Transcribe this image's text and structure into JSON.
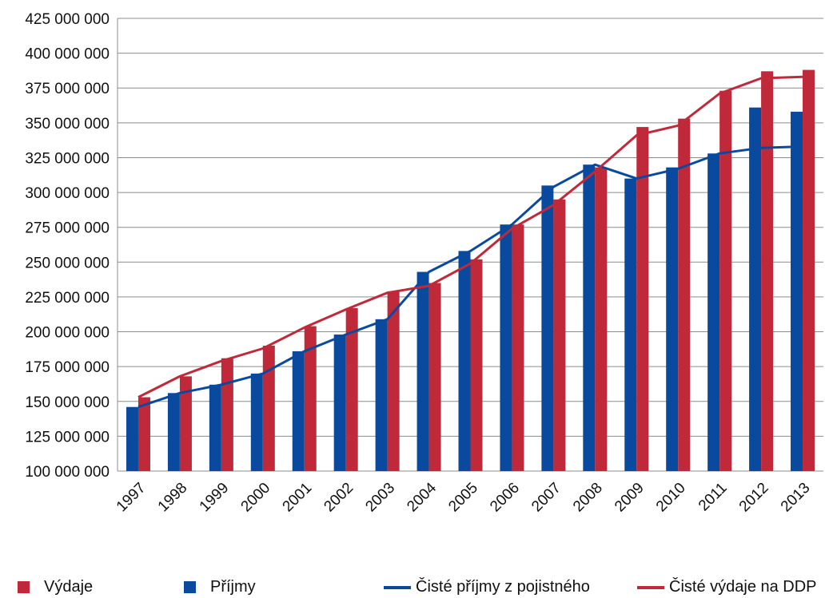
{
  "chart_data": {
    "type": "bar",
    "title": "",
    "xlabel": "",
    "ylabel": "",
    "categories": [
      "1997",
      "1998",
      "1999",
      "2000",
      "2001",
      "2002",
      "2003",
      "2004",
      "2005",
      "2006",
      "2007",
      "2008",
      "2009",
      "2010",
      "2011",
      "2012",
      "2013"
    ],
    "ylim": [
      100000000,
      425000000
    ],
    "y_ticks": [
      "100 000 000",
      "125 000 000",
      "150 000 000",
      "175 000 000",
      "200 000 000",
      "225 000 000",
      "250 000 000",
      "275 000 000",
      "300 000 000",
      "325 000 000",
      "350 000 000",
      "375 000 000",
      "400 000 000",
      "425 000 000"
    ],
    "grid": true,
    "legend_position": "bottom",
    "series": [
      {
        "name": "Příjmy",
        "kind": "bar",
        "color": "#0A4A9E",
        "values": [
          146000000,
          156000000,
          162000000,
          170000000,
          186000000,
          198000000,
          209000000,
          243000000,
          258000000,
          277000000,
          305000000,
          320000000,
          310000000,
          318000000,
          328000000,
          361000000,
          358000000
        ]
      },
      {
        "name": "Výdaje",
        "kind": "bar",
        "color": "#C0293A",
        "values": [
          153000000,
          168000000,
          181000000,
          190000000,
          204000000,
          217000000,
          229000000,
          235000000,
          252000000,
          277000000,
          295000000,
          318000000,
          347000000,
          353000000,
          373000000,
          387000000,
          388000000
        ]
      },
      {
        "name": "Čisté příjmy z pojistného",
        "kind": "line",
        "color": "#0A4A9E",
        "values": [
          146000000,
          156000000,
          162000000,
          170000000,
          186000000,
          198000000,
          209000000,
          243000000,
          258000000,
          277000000,
          304000000,
          320000000,
          310000000,
          317000000,
          328000000,
          332000000,
          333000000
        ]
      },
      {
        "name": "Čisté výdaje na DDP",
        "kind": "line",
        "color": "#C0293A",
        "values": [
          153000000,
          168000000,
          179000000,
          188000000,
          203000000,
          216000000,
          228000000,
          233000000,
          249000000,
          274000000,
          291000000,
          315000000,
          341000000,
          348000000,
          371000000,
          382000000,
          383000000
        ]
      }
    ]
  },
  "legend": {
    "items": [
      {
        "label": "Výdaje",
        "kind": "box",
        "color": "#C0293A"
      },
      {
        "label": "Příjmy",
        "kind": "box",
        "color": "#0A4A9E"
      },
      {
        "label": "Čisté příjmy z pojistného",
        "kind": "line",
        "color": "#0A4A9E"
      },
      {
        "label": "Čisté výdaje na DDP",
        "kind": "line",
        "color": "#C0293A"
      }
    ]
  }
}
